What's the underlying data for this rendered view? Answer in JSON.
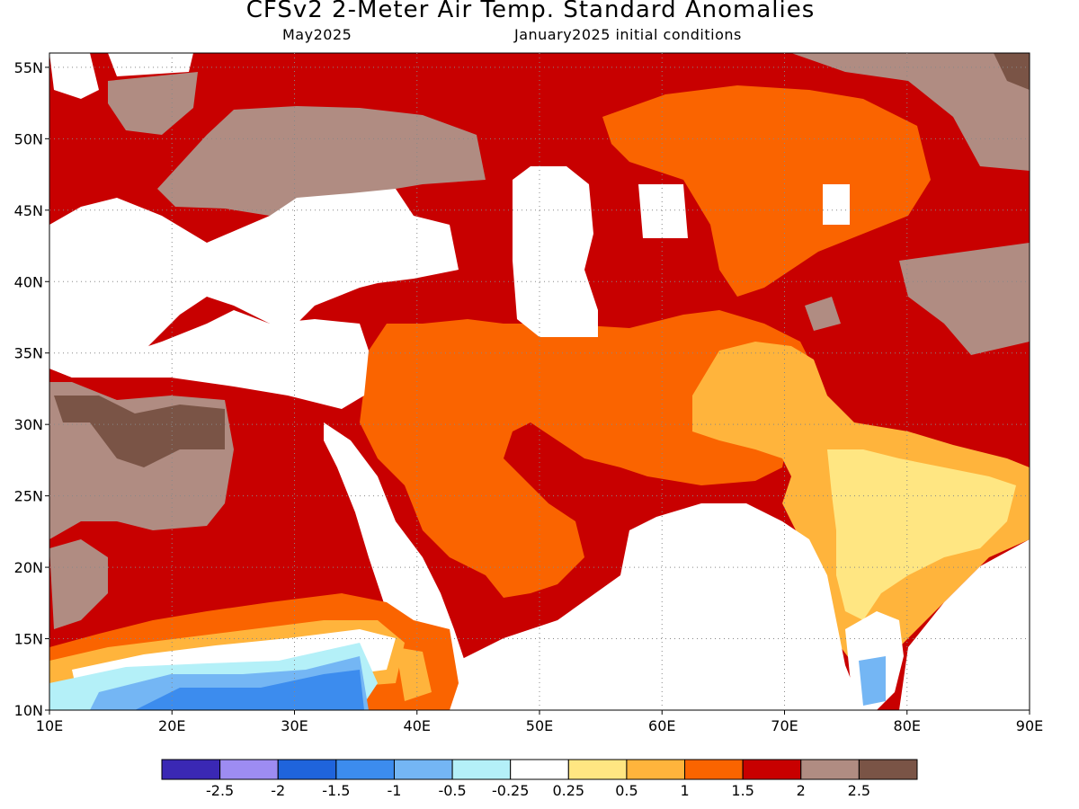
{
  "header": {
    "title": "CFSv2 2-Meter Air Temp. Standard Anomalies",
    "valid_month": "May2025",
    "initial_conditions": "January2025 initial conditions"
  },
  "map": {
    "region": "Middle East / South Asia",
    "lon_range": [
      10,
      90
    ],
    "lat_range": [
      10,
      56
    ],
    "gridlines": "dotted",
    "lat_ticks": [
      {
        "value": 10,
        "label": "10N"
      },
      {
        "value": 15,
        "label": "15N"
      },
      {
        "value": 20,
        "label": "20N"
      },
      {
        "value": 25,
        "label": "25N"
      },
      {
        "value": 30,
        "label": "30N"
      },
      {
        "value": 35,
        "label": "35N"
      },
      {
        "value": 40,
        "label": "40N"
      },
      {
        "value": 45,
        "label": "45N"
      },
      {
        "value": 50,
        "label": "50N"
      },
      {
        "value": 55,
        "label": "55N"
      }
    ],
    "lon_ticks": [
      {
        "value": 10,
        "label": "10E"
      },
      {
        "value": 20,
        "label": "20E"
      },
      {
        "value": 30,
        "label": "30E"
      },
      {
        "value": 40,
        "label": "40E"
      },
      {
        "value": 50,
        "label": "50E"
      },
      {
        "value": 60,
        "label": "60E"
      },
      {
        "value": 70,
        "label": "70E"
      },
      {
        "value": 80,
        "label": "80E"
      },
      {
        "value": 90,
        "label": "90E"
      }
    ]
  },
  "legend": {
    "colors": [
      "#3a28b4",
      "#9d8cf2",
      "#1f64dc",
      "#3c8cee",
      "#74b6f4",
      "#b4f0f8",
      "#ffffff",
      "#ffe682",
      "#ffb43c",
      "#fa6400",
      "#c80000",
      "#b08c82",
      "#7a5446"
    ],
    "boundaries": [
      "-2.5",
      "-2",
      "-1.5",
      "-1",
      "-0.5",
      "-0.25",
      "0.25",
      "0.5",
      "1",
      "1.5",
      "2",
      "2.5"
    ]
  },
  "colors": {
    "white": "#ffffff",
    "yellow": "#ffe682",
    "light_orange": "#ffb43c",
    "orange": "#fa6400",
    "dark_red": "#c80000",
    "brown": "#b08c82",
    "dark_brown": "#7a5446",
    "light_cyan": "#b4f0f8",
    "light_blue": "#74b6f4",
    "medium_blue": "#3c8cee",
    "deep_blue": "#1f64dc"
  }
}
